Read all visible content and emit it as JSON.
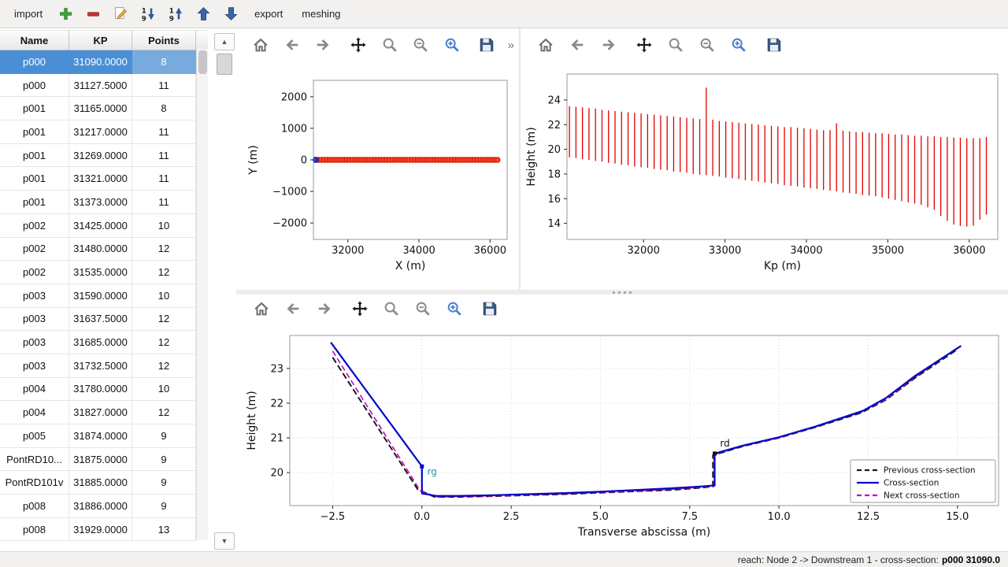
{
  "toolbar": {
    "items": [
      {
        "type": "text",
        "label": "import",
        "name": "import-button"
      },
      {
        "type": "icon",
        "icon": "add",
        "name": "add-cross-section-button"
      },
      {
        "type": "icon",
        "icon": "remove",
        "name": "remove-cross-section-button"
      },
      {
        "type": "icon",
        "icon": "edit",
        "name": "edit-button"
      },
      {
        "type": "icon",
        "icon": "sort-desc",
        "name": "sort-descending-button"
      },
      {
        "type": "icon",
        "icon": "sort-asc",
        "name": "sort-ascending-button"
      },
      {
        "type": "icon",
        "icon": "arrow-up",
        "name": "move-up-button"
      },
      {
        "type": "icon",
        "icon": "arrow-down",
        "name": "move-down-button"
      },
      {
        "type": "text",
        "label": "export",
        "name": "export-button"
      },
      {
        "type": "text",
        "label": "meshing",
        "name": "meshing-button"
      }
    ]
  },
  "icons": {
    "scroll_up": "▲",
    "scroll_down": "▼"
  },
  "mpl_toolbar": {
    "icons": [
      "home",
      "back",
      "forward",
      "pan",
      "zoom",
      "zoom-out",
      "zoom-in",
      "save"
    ],
    "overflow_label": "»"
  },
  "table": {
    "headers": [
      "Name",
      "KP",
      "Points"
    ],
    "rows": [
      {
        "name": "p000",
        "kp": "31090.0000",
        "points": "8",
        "selected": true
      },
      {
        "name": "p000",
        "kp": "31127.5000",
        "points": "11"
      },
      {
        "name": "p001",
        "kp": "31165.0000",
        "points": "8"
      },
      {
        "name": "p001",
        "kp": "31217.0000",
        "points": "11"
      },
      {
        "name": "p001",
        "kp": "31269.0000",
        "points": "11"
      },
      {
        "name": "p001",
        "kp": "31321.0000",
        "points": "11"
      },
      {
        "name": "p001",
        "kp": "31373.0000",
        "points": "11"
      },
      {
        "name": "p002",
        "kp": "31425.0000",
        "points": "10"
      },
      {
        "name": "p002",
        "kp": "31480.0000",
        "points": "12"
      },
      {
        "name": "p002",
        "kp": "31535.0000",
        "points": "12"
      },
      {
        "name": "p003",
        "kp": "31590.0000",
        "points": "10"
      },
      {
        "name": "p003",
        "kp": "31637.5000",
        "points": "12"
      },
      {
        "name": "p003",
        "kp": "31685.0000",
        "points": "12"
      },
      {
        "name": "p003",
        "kp": "31732.5000",
        "points": "12"
      },
      {
        "name": "p004",
        "kp": "31780.0000",
        "points": "10"
      },
      {
        "name": "p004",
        "kp": "31827.0000",
        "points": "12"
      },
      {
        "name": "p005",
        "kp": "31874.0000",
        "points": "9"
      },
      {
        "name": "PontRD10...",
        "kp": "31875.0000",
        "points": "9"
      },
      {
        "name": "PontRD101v",
        "kp": "31885.0000",
        "points": "9"
      },
      {
        "name": "p008",
        "kp": "31886.0000",
        "points": "9"
      },
      {
        "name": "p008",
        "kp": "31929.0000",
        "points": "13"
      }
    ]
  },
  "status_bar": {
    "prefix": "reach: Node 2 -> Downstream 1 - cross-section: ",
    "current": "p000 31090.0"
  },
  "kp_stations": [
    31090,
    31170,
    31250,
    31330,
    31410,
    31490,
    31570,
    31650,
    31730,
    31810,
    31890,
    31970,
    32050,
    32130,
    32210,
    32290,
    32370,
    32450,
    32530,
    32610,
    32690,
    32770,
    32850,
    32930,
    33010,
    33090,
    33170,
    33250,
    33330,
    33410,
    33490,
    33570,
    33650,
    33730,
    33810,
    33890,
    33970,
    34050,
    34130,
    34210,
    34290,
    34370,
    34450,
    34530,
    34610,
    34690,
    34770,
    34850,
    34930,
    35010,
    35090,
    35170,
    35250,
    35330,
    35410,
    35490,
    35570,
    35650,
    35730,
    35810,
    35890,
    35970,
    36050,
    36130,
    36210
  ],
  "chart_data": [
    {
      "id": "plan-view",
      "type": "scatter",
      "title": "",
      "xlabel": "X (m)",
      "ylabel": "Y (m)",
      "xlim": [
        31030,
        36480
      ],
      "ylim": [
        -2520,
        2520
      ],
      "xticks": [
        [
          32000,
          "32000"
        ],
        [
          34000,
          "34000"
        ],
        [
          36000,
          "36000"
        ]
      ],
      "yticks": [
        [
          2000,
          "2000"
        ],
        [
          1000,
          "1000"
        ],
        [
          0,
          "0"
        ],
        [
          -1000,
          "−1000"
        ],
        [
          -2000,
          "−2000"
        ]
      ],
      "grid": false,
      "x_from": "kp_stations",
      "y_value": 0,
      "marker_color": "#ff4422",
      "marker_edge": "#cc1100",
      "highlight": {
        "index": 0,
        "color": "#2233dd",
        "edge": "#111188"
      }
    },
    {
      "id": "long-profile",
      "type": "rangebar",
      "title": "",
      "xlabel": "Kp (m)",
      "ylabel": "Height (m)",
      "xlim": [
        31060,
        36350
      ],
      "ylim": [
        12.7,
        26.1
      ],
      "xticks": [
        [
          32000,
          "32000"
        ],
        [
          33000,
          "33000"
        ],
        [
          34000,
          "34000"
        ],
        [
          35000,
          "35000"
        ],
        [
          36000,
          "36000"
        ]
      ],
      "yticks": [
        [
          14,
          "14"
        ],
        [
          16,
          "16"
        ],
        [
          18,
          "18"
        ],
        [
          20,
          "20"
        ],
        [
          22,
          "22"
        ],
        [
          24,
          "24"
        ]
      ],
      "grid": false,
      "x_from": "kp_stations",
      "color": "#e00000",
      "top": [
        23.5,
        23.45,
        23.4,
        23.35,
        23.3,
        23.2,
        23.15,
        23.1,
        23.05,
        23.0,
        22.95,
        22.9,
        22.85,
        22.8,
        22.75,
        22.7,
        22.65,
        22.6,
        22.55,
        22.5,
        22.45,
        25.0,
        22.4,
        22.3,
        22.25,
        22.2,
        22.15,
        22.1,
        22.05,
        22.0,
        21.95,
        21.9,
        21.85,
        21.8,
        21.8,
        21.75,
        21.7,
        21.65,
        21.6,
        21.55,
        21.55,
        22.1,
        21.5,
        21.45,
        21.4,
        21.4,
        21.35,
        21.3,
        21.3,
        21.25,
        21.2,
        21.2,
        21.15,
        21.1,
        21.1,
        21.05,
        21.05,
        21.0,
        21.0,
        20.95,
        20.95,
        20.9,
        20.9,
        20.9,
        21.0
      ],
      "bottom": [
        19.35,
        19.3,
        19.2,
        19.15,
        19.05,
        19.0,
        18.9,
        18.85,
        18.75,
        18.7,
        18.6,
        18.55,
        18.5,
        18.4,
        18.35,
        18.3,
        18.2,
        18.15,
        18.1,
        18.0,
        17.95,
        17.9,
        17.85,
        17.8,
        17.7,
        17.65,
        17.6,
        17.5,
        17.45,
        17.4,
        17.3,
        17.25,
        17.2,
        17.1,
        17.05,
        17.0,
        16.9,
        16.85,
        16.8,
        16.7,
        16.65,
        16.6,
        16.5,
        16.45,
        16.4,
        16.3,
        16.25,
        16.2,
        16.1,
        16.0,
        15.9,
        15.8,
        15.7,
        15.6,
        15.5,
        15.3,
        15.1,
        14.6,
        14.2,
        13.9,
        13.8,
        13.75,
        13.8,
        14.3,
        14.7
      ]
    },
    {
      "id": "cross-section",
      "type": "line",
      "title": "",
      "xlabel": "Transverse abscissa (m)",
      "ylabel": "Height (m)",
      "xlim": [
        -3.7,
        16.15
      ],
      "ylim": [
        19.05,
        23.95
      ],
      "xticks": [
        [
          -2.5,
          "−2.5"
        ],
        [
          0,
          "0.0"
        ],
        [
          2.5,
          "2.5"
        ],
        [
          5,
          "5.0"
        ],
        [
          7.5,
          "7.5"
        ],
        [
          10,
          "10.0"
        ],
        [
          12.5,
          "12.5"
        ],
        [
          15,
          "15.0"
        ]
      ],
      "yticks": [
        [
          20,
          "20"
        ],
        [
          21,
          "21"
        ],
        [
          22,
          "22"
        ],
        [
          23,
          "23"
        ]
      ],
      "grid": true,
      "series": [
        {
          "name": "Previous cross-section",
          "color": "#1a1a1a",
          "width": 2,
          "dash": "8 4",
          "x": [
            -2.5,
            -0.12,
            0.35,
            1.0,
            2.0,
            3.0,
            4.0,
            5.0,
            6.0,
            7.0,
            7.8,
            8.15,
            8.15,
            9.0,
            10.0,
            11.0,
            12.3,
            13.0,
            13.8,
            15.0
          ],
          "y": [
            23.32,
            19.52,
            19.3,
            19.3,
            19.32,
            19.35,
            19.38,
            19.42,
            19.46,
            19.5,
            19.56,
            19.6,
            20.5,
            20.76,
            21.0,
            21.3,
            21.72,
            22.1,
            22.72,
            23.55
          ]
        },
        {
          "name": "Next cross-section",
          "color": "#c400c4",
          "width": 1.6,
          "dash": "7 4",
          "x": [
            -2.5,
            -0.05,
            0.4,
            1.0,
            2.0,
            3.0,
            4.0,
            5.0,
            6.0,
            7.0,
            7.8,
            8.18,
            8.18,
            9.0,
            10.0,
            11.0,
            12.3,
            13.0,
            13.8,
            15.0
          ],
          "y": [
            23.5,
            19.48,
            19.3,
            19.31,
            19.33,
            19.36,
            19.39,
            19.43,
            19.47,
            19.52,
            19.58,
            19.61,
            20.52,
            20.77,
            21.0,
            21.31,
            21.74,
            22.12,
            22.74,
            23.6
          ]
        },
        {
          "name": "Cross-section",
          "color": "#0008c8",
          "width": 2.2,
          "dash": null,
          "x": [
            -2.55,
            0.0,
            0.0,
            0.4,
            1.0,
            2.0,
            3.0,
            4.0,
            5.0,
            6.0,
            7.0,
            7.8,
            8.2,
            8.2,
            9.0,
            10.0,
            11.0,
            12.35,
            13.0,
            13.8,
            15.1
          ],
          "y": [
            23.75,
            20.18,
            19.4,
            19.33,
            19.33,
            19.35,
            19.38,
            19.41,
            19.45,
            19.5,
            19.55,
            19.6,
            19.63,
            20.55,
            20.78,
            21.02,
            21.32,
            21.78,
            22.15,
            22.78,
            23.65
          ]
        }
      ],
      "markers": [
        {
          "x": 0.0,
          "y": 20.18,
          "color": "#0008c8"
        },
        {
          "x": 8.2,
          "y": 20.55,
          "color": "#111111"
        }
      ],
      "annotations": [
        {
          "text": "rg",
          "x": 0.15,
          "y": 19.93,
          "color": "#1a9daa"
        },
        {
          "text": "rd",
          "x": 8.35,
          "y": 20.75,
          "color": "#111111"
        }
      ],
      "legend": [
        {
          "label": "Previous cross-section",
          "color": "#1a1a1a",
          "dash": true
        },
        {
          "label": "Cross-section",
          "color": "#0008c8",
          "dash": false
        },
        {
          "label": "Next cross-section",
          "color": "#c400c4",
          "dash": true
        }
      ],
      "legend_position": "lower right"
    }
  ]
}
